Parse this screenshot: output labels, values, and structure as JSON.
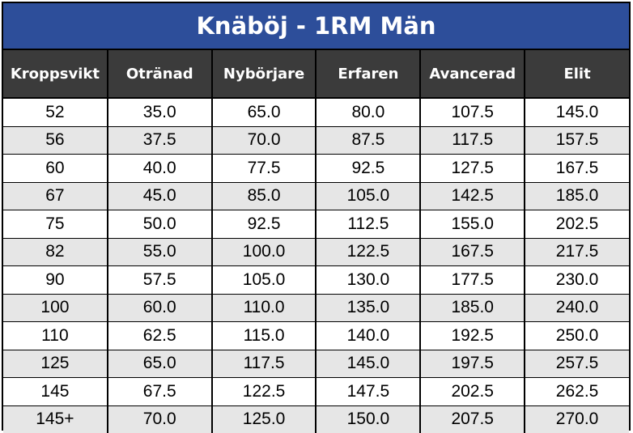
{
  "chart_data": {
    "type": "table",
    "title": "Knäböj - 1RM Män",
    "columns": [
      "Kroppsvikt",
      "Otränad",
      "Nybörjare",
      "Erfaren",
      "Avancerad",
      "Elit"
    ],
    "rows": [
      [
        "52",
        "35.0",
        "65.0",
        "80.0",
        "107.5",
        "145.0"
      ],
      [
        "56",
        "37.5",
        "70.0",
        "87.5",
        "117.5",
        "157.5"
      ],
      [
        "60",
        "40.0",
        "77.5",
        "92.5",
        "127.5",
        "167.5"
      ],
      [
        "67",
        "45.0",
        "85.0",
        "105.0",
        "142.5",
        "185.0"
      ],
      [
        "75",
        "50.0",
        "92.5",
        "112.5",
        "155.0",
        "202.5"
      ],
      [
        "82",
        "55.0",
        "100.0",
        "122.5",
        "167.5",
        "217.5"
      ],
      [
        "90",
        "57.5",
        "105.0",
        "130.0",
        "177.5",
        "230.0"
      ],
      [
        "100",
        "60.0",
        "110.0",
        "135.0",
        "185.0",
        "240.0"
      ],
      [
        "110",
        "62.5",
        "115.0",
        "140.0",
        "192.5",
        "250.0"
      ],
      [
        "125",
        "65.0",
        "117.5",
        "145.0",
        "197.5",
        "257.5"
      ],
      [
        "145",
        "67.5",
        "122.5",
        "147.5",
        "202.5",
        "262.5"
      ],
      [
        "145+",
        "70.0",
        "125.0",
        "150.0",
        "207.5",
        "270.0"
      ]
    ]
  },
  "colors": {
    "title_bg": "#2d4e9a",
    "header_bg": "#3b3b3b",
    "stripe_bg": "#e6e6e6"
  }
}
